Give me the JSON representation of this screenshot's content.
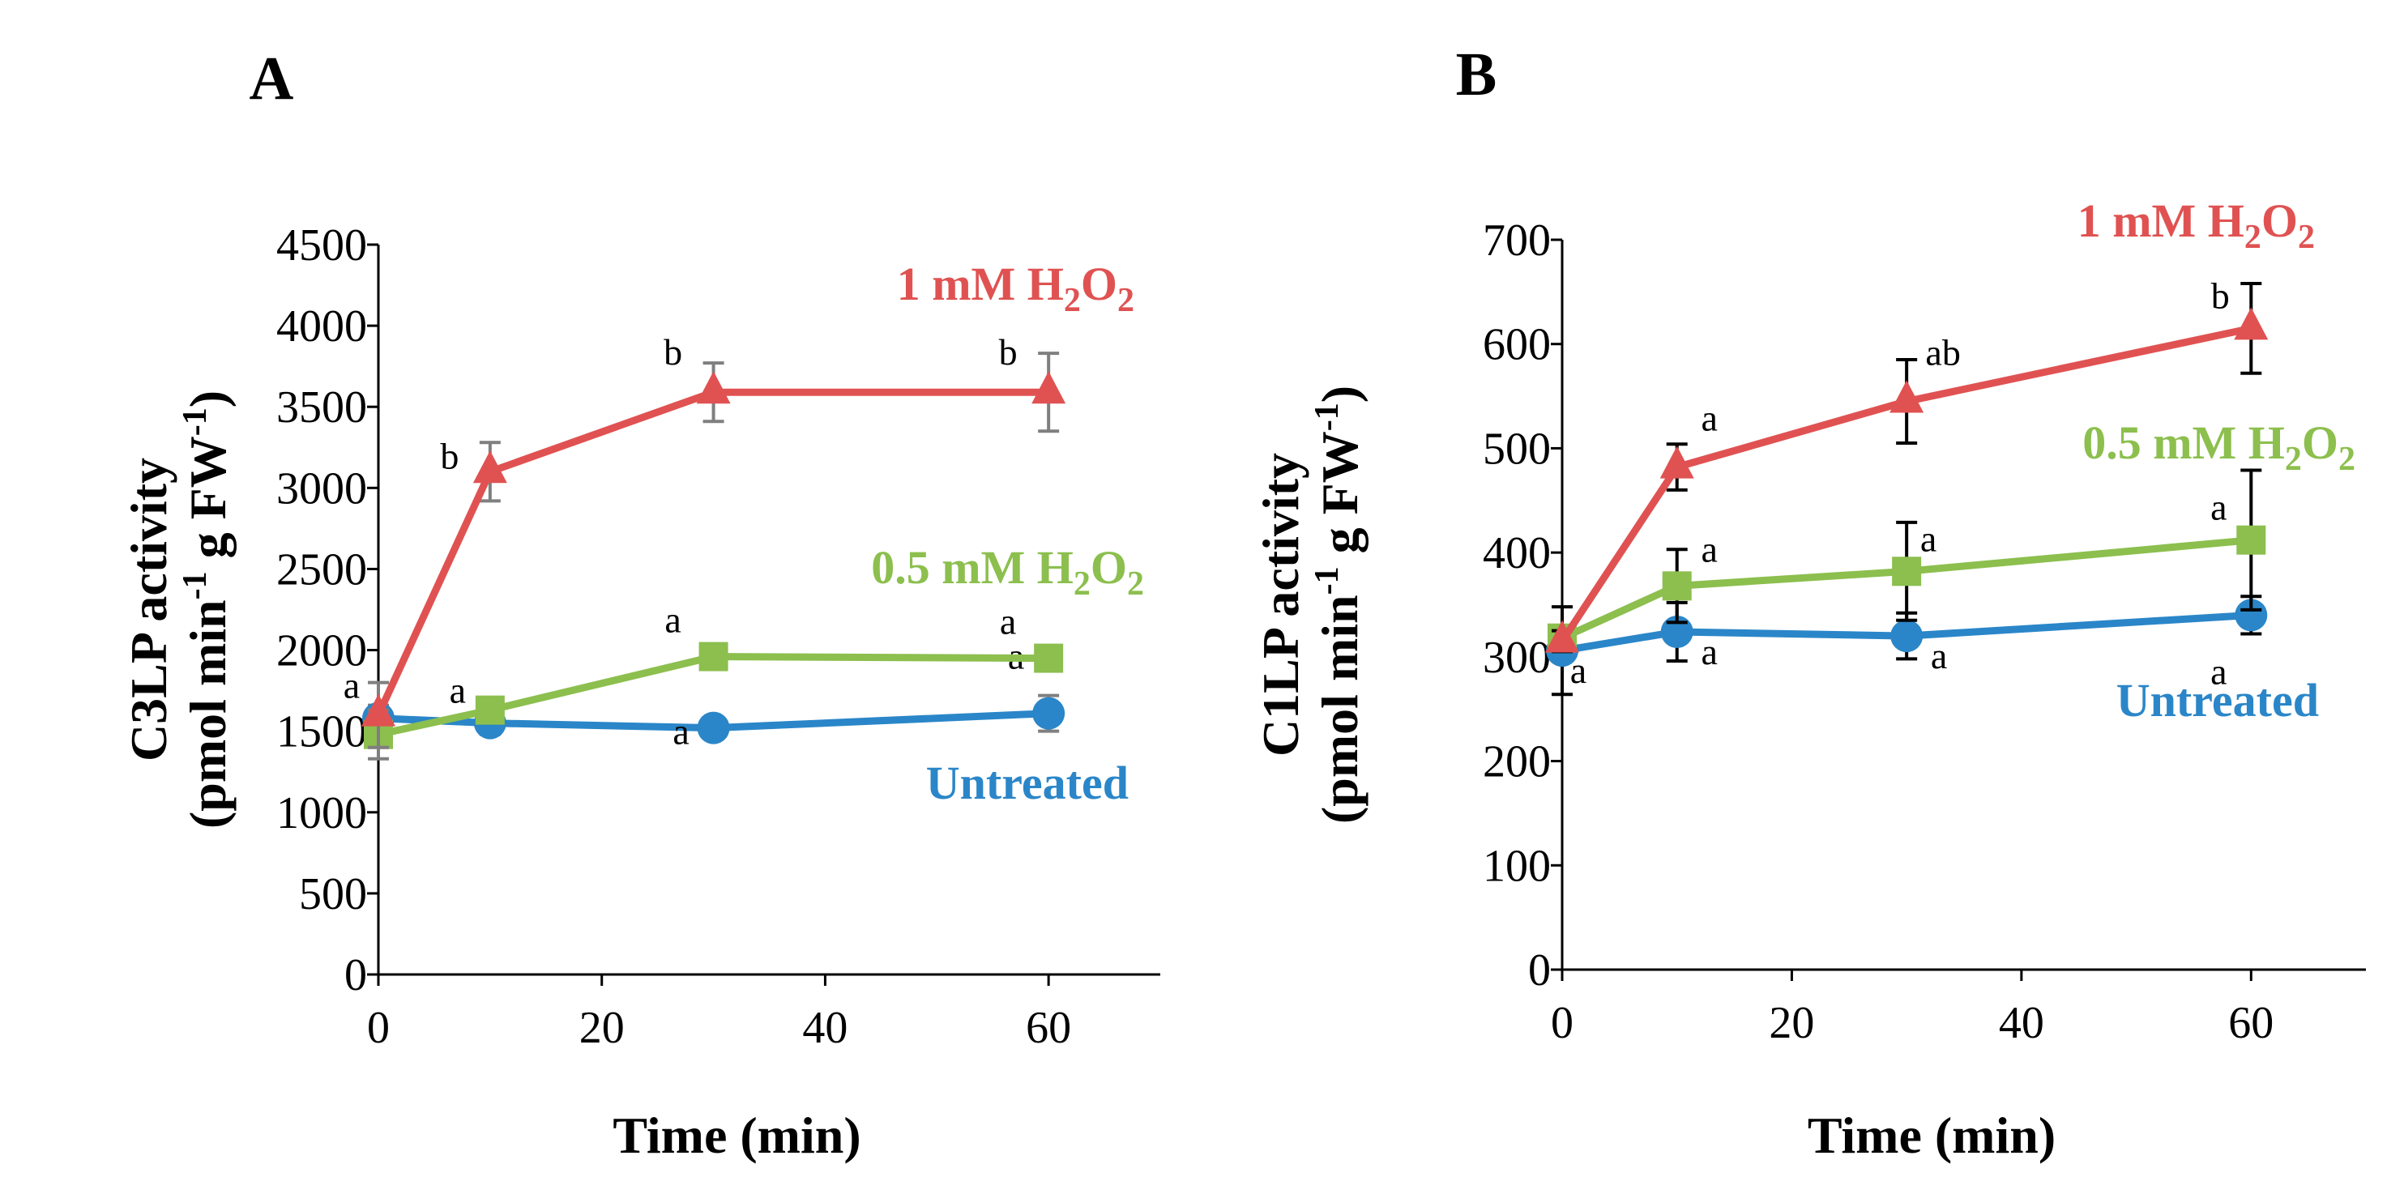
{
  "chart_data": [
    {
      "type": "line",
      "panel_label": "A",
      "xlabel": "Time (min)",
      "ylabel": {
        "line1": "C3LP activity",
        "line2_pre": "(pmol min",
        "sup1": "-1",
        "line2_mid": " g FW",
        "sup2": "-1",
        "line2_post": ")"
      },
      "xlim": [
        0,
        70
      ],
      "ylim": [
        0,
        4500
      ],
      "xticks": [
        0,
        20,
        40,
        60
      ],
      "yticks": [
        0,
        500,
        1000,
        1500,
        2000,
        2500,
        3000,
        3500,
        4000,
        4500
      ],
      "x": [
        0,
        10,
        30,
        60
      ],
      "error_bar_color": "#7f7f7f",
      "series": [
        {
          "key": "red",
          "name": "1 mM H2O2",
          "label": {
            "pre": "1 mM H",
            "sub1": "2",
            "mid": "O",
            "sub2": "2"
          },
          "marker": "triangle",
          "color": "#e05252",
          "values": [
            1600,
            3100,
            3590,
            3590
          ],
          "errors": [
            200,
            180,
            180,
            240
          ],
          "sig": [
            "",
            "b",
            "b",
            "b"
          ]
        },
        {
          "key": "green",
          "name": "0.5 mM H2O2",
          "label": {
            "pre": "0.5 mM H",
            "sub1": "2",
            "mid": "O",
            "sub2": "2"
          },
          "marker": "square",
          "color": "#8cbf4e",
          "values": [
            1480,
            1630,
            1960,
            1950
          ],
          "errors": [
            150,
            40,
            60,
            40
          ],
          "sig": [
            "",
            "",
            "a",
            "a"
          ]
        },
        {
          "key": "blue",
          "name": "Untreated",
          "label": {
            "pre": "Untreated",
            "sub1": "",
            "mid": "",
            "sub2": ""
          },
          "marker": "circle",
          "color": "#2a86c8",
          "values": [
            1580,
            1550,
            1520,
            1610
          ],
          "errors": [
            80,
            70,
            30,
            110
          ],
          "sig": [
            "a",
            "a",
            "a",
            "a"
          ]
        }
      ]
    },
    {
      "type": "line",
      "panel_label": "B",
      "xlabel": "Time (min)",
      "ylabel": {
        "line1": "C1LP activity",
        "line2_pre": "(pmol min",
        "sup1": "-1",
        "line2_mid": " g FW",
        "sup2": "-1",
        "line2_post": ")"
      },
      "xlim": [
        0,
        70
      ],
      "ylim": [
        0,
        700
      ],
      "xticks": [
        0,
        20,
        40,
        60
      ],
      "yticks": [
        0,
        100,
        200,
        300,
        400,
        500,
        600,
        700
      ],
      "x": [
        0,
        10,
        30,
        60
      ],
      "error_bar_color": "#000000",
      "series": [
        {
          "key": "red",
          "name": "1 mM H2O2",
          "label": {
            "pre": "1 mM H",
            "sub1": "2",
            "mid": "O",
            "sub2": "2"
          },
          "marker": "triangle",
          "color": "#e05252",
          "values": [
            315,
            482,
            545,
            615
          ],
          "errors": [
            10,
            22,
            40,
            43
          ],
          "sig": [
            "",
            "a",
            "ab",
            "b"
          ]
        },
        {
          "key": "green",
          "name": "0.5 mM H2O2",
          "label": {
            "pre": "0.5 mM H",
            "sub1": "2",
            "mid": "O",
            "sub2": "2"
          },
          "marker": "square",
          "color": "#8cbf4e",
          "values": [
            318,
            368,
            382,
            412
          ],
          "errors": [
            5,
            35,
            47,
            67
          ],
          "sig": [
            "",
            "a",
            "a",
            "a"
          ]
        },
        {
          "key": "blue",
          "name": "Untreated",
          "label": {
            "pre": "Untreated",
            "sub1": "",
            "mid": "",
            "sub2": ""
          },
          "marker": "circle",
          "color": "#2a86c8",
          "values": [
            306,
            324,
            320,
            340
          ],
          "errors": [
            42,
            28,
            22,
            18
          ],
          "sig": [
            "a",
            "a",
            "a",
            "a"
          ]
        }
      ]
    }
  ]
}
